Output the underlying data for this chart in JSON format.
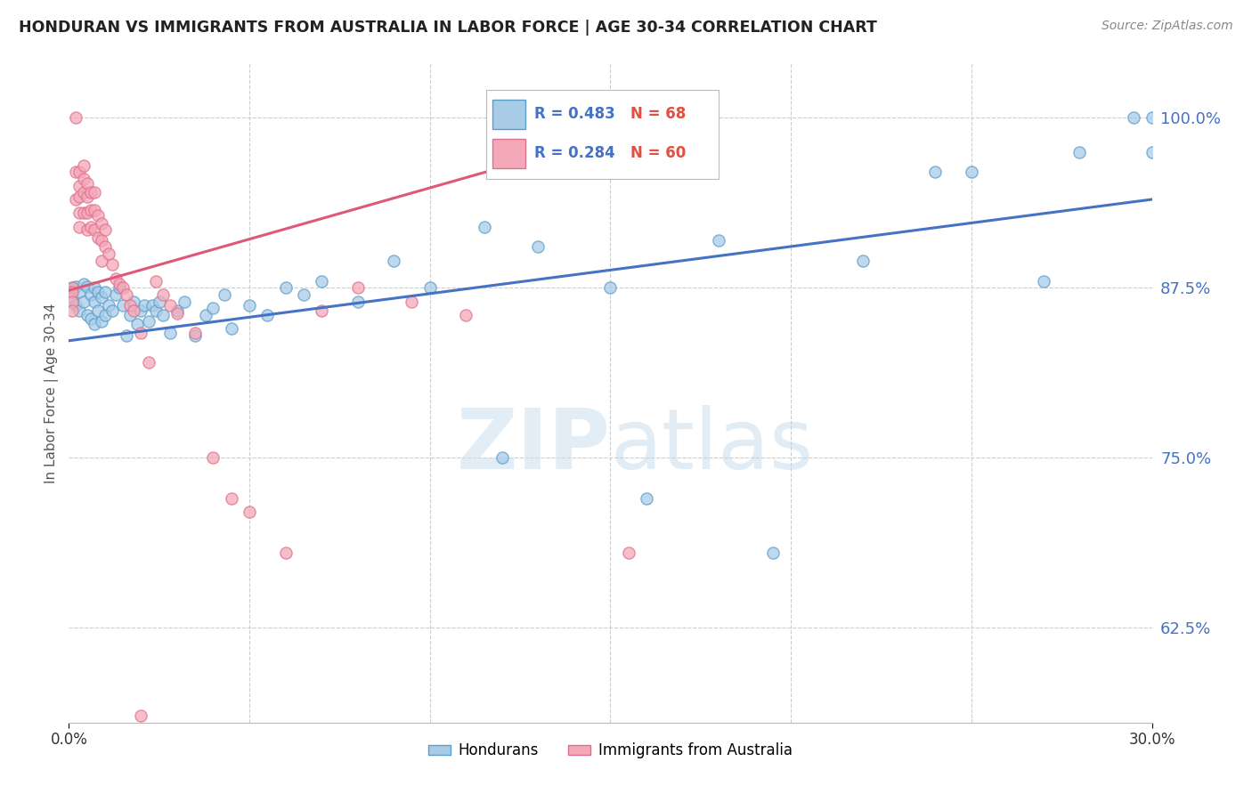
{
  "title": "HONDURAN VS IMMIGRANTS FROM AUSTRALIA IN LABOR FORCE | AGE 30-34 CORRELATION CHART",
  "source": "Source: ZipAtlas.com",
  "ylabel": "In Labor Force | Age 30-34",
  "blue_R": 0.483,
  "blue_N": 68,
  "pink_R": 0.284,
  "pink_N": 60,
  "legend_blue": "Hondurans",
  "legend_pink": "Immigrants from Australia",
  "blue_color": "#a8cce8",
  "pink_color": "#f4a8b8",
  "blue_edge_color": "#5b9ec9",
  "pink_edge_color": "#e07090",
  "blue_line_color": "#4472c4",
  "pink_line_color": "#e05878",
  "legend_R_color": "#4472c4",
  "legend_N_color": "#e05040",
  "watermark_color": "#d0e4f4",
  "title_color": "#222222",
  "source_color": "#888888",
  "ylabel_color": "#555555",
  "ytick_color": "#4472c4",
  "xtick_color": "#333333",
  "grid_color": "#cccccc",
  "xlim": [
    0.0,
    0.3
  ],
  "ylim": [
    0.555,
    1.04
  ],
  "ytick_vals": [
    0.625,
    0.75,
    0.875,
    1.0
  ],
  "ytick_labels": [
    "62.5%",
    "75.0%",
    "87.5%",
    "100.0%"
  ],
  "xtick_vals": [
    0.0,
    0.3
  ],
  "xtick_labels": [
    "0.0%",
    "30.0%"
  ],
  "blue_line_x": [
    0.0,
    0.3
  ],
  "blue_line_y": [
    0.836,
    0.94
  ],
  "pink_line_x": [
    0.0,
    0.155
  ],
  "pink_line_y": [
    0.873,
    0.99
  ],
  "blue_x": [
    0.001,
    0.001,
    0.002,
    0.002,
    0.003,
    0.003,
    0.004,
    0.004,
    0.005,
    0.005,
    0.006,
    0.006,
    0.007,
    0.007,
    0.007,
    0.008,
    0.008,
    0.009,
    0.009,
    0.01,
    0.01,
    0.011,
    0.012,
    0.013,
    0.014,
    0.015,
    0.016,
    0.017,
    0.018,
    0.019,
    0.02,
    0.021,
    0.022,
    0.023,
    0.024,
    0.025,
    0.026,
    0.028,
    0.03,
    0.032,
    0.035,
    0.038,
    0.04,
    0.043,
    0.045,
    0.05,
    0.055,
    0.06,
    0.065,
    0.07,
    0.08,
    0.09,
    0.1,
    0.115,
    0.13,
    0.15,
    0.18,
    0.22,
    0.25,
    0.27,
    0.28,
    0.295,
    0.3,
    0.3,
    0.12,
    0.16,
    0.195,
    0.24
  ],
  "blue_y": [
    0.875,
    0.868,
    0.876,
    0.862,
    0.872,
    0.858,
    0.878,
    0.865,
    0.876,
    0.855,
    0.87,
    0.852,
    0.875,
    0.865,
    0.848,
    0.872,
    0.858,
    0.868,
    0.85,
    0.872,
    0.855,
    0.862,
    0.858,
    0.87,
    0.875,
    0.862,
    0.84,
    0.855,
    0.865,
    0.848,
    0.858,
    0.862,
    0.85,
    0.862,
    0.858,
    0.865,
    0.855,
    0.842,
    0.858,
    0.865,
    0.84,
    0.855,
    0.86,
    0.87,
    0.845,
    0.862,
    0.855,
    0.875,
    0.87,
    0.88,
    0.865,
    0.895,
    0.875,
    0.92,
    0.905,
    0.875,
    0.91,
    0.895,
    0.96,
    0.88,
    0.975,
    1.0,
    1.0,
    0.975,
    0.75,
    0.72,
    0.68,
    0.96
  ],
  "pink_x": [
    0.001,
    0.001,
    0.001,
    0.001,
    0.002,
    0.002,
    0.002,
    0.003,
    0.003,
    0.003,
    0.003,
    0.003,
    0.004,
    0.004,
    0.004,
    0.004,
    0.005,
    0.005,
    0.005,
    0.005,
    0.006,
    0.006,
    0.006,
    0.007,
    0.007,
    0.007,
    0.008,
    0.008,
    0.009,
    0.009,
    0.009,
    0.01,
    0.01,
    0.011,
    0.012,
    0.013,
    0.014,
    0.015,
    0.016,
    0.017,
    0.018,
    0.02,
    0.022,
    0.024,
    0.026,
    0.028,
    0.03,
    0.035,
    0.04,
    0.045,
    0.05,
    0.06,
    0.07,
    0.08,
    0.095,
    0.11,
    0.13,
    0.15,
    0.155,
    0.02
  ],
  "pink_y": [
    0.875,
    0.872,
    0.865,
    0.858,
    1.0,
    0.96,
    0.94,
    0.96,
    0.95,
    0.942,
    0.93,
    0.92,
    0.965,
    0.955,
    0.945,
    0.93,
    0.952,
    0.942,
    0.93,
    0.918,
    0.945,
    0.932,
    0.92,
    0.945,
    0.932,
    0.918,
    0.928,
    0.912,
    0.922,
    0.91,
    0.895,
    0.905,
    0.918,
    0.9,
    0.892,
    0.882,
    0.878,
    0.875,
    0.87,
    0.862,
    0.858,
    0.842,
    0.82,
    0.88,
    0.87,
    0.862,
    0.856,
    0.842,
    0.75,
    0.72,
    0.71,
    0.68,
    0.858,
    0.875,
    0.865,
    0.855,
    0.96,
    1.0,
    0.68,
    0.56
  ]
}
